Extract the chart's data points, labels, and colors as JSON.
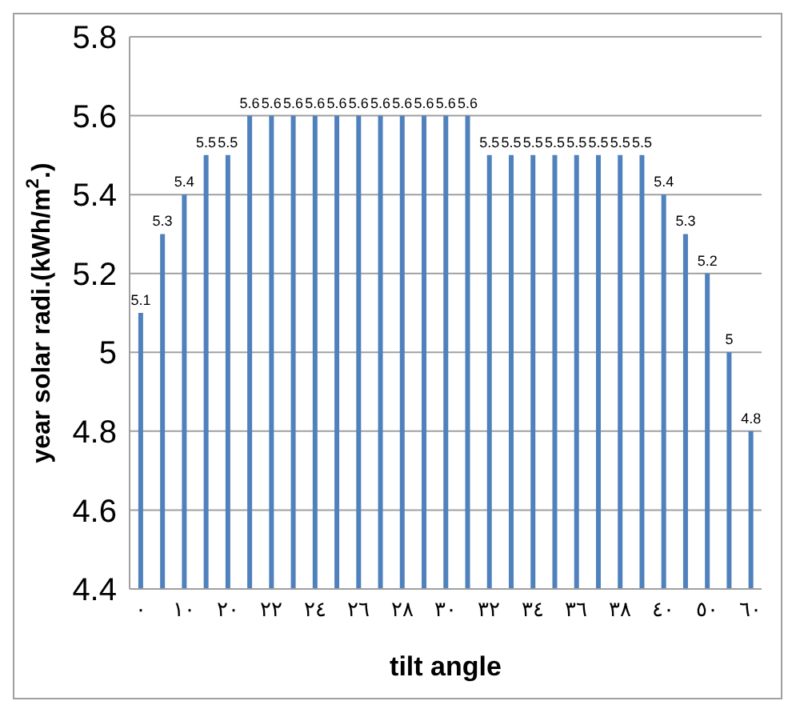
{
  "chart_data": {
    "type": "bar",
    "categories": [
      "٠",
      null,
      "١٠",
      null,
      "٢٠",
      null,
      "٢٢",
      null,
      "٢٤",
      null,
      "٢٦",
      null,
      "٢٨",
      null,
      "٣٠",
      null,
      "٣٢",
      null,
      "٣٤",
      null,
      "٣٦",
      null,
      "٣٨",
      null,
      "٤٠",
      null,
      "٥٠",
      null,
      "٦٠"
    ],
    "values": [
      5.1,
      5.3,
      5.4,
      5.5,
      5.5,
      5.6,
      5.6,
      5.6,
      5.6,
      5.6,
      5.6,
      5.6,
      5.6,
      5.6,
      5.6,
      5.6,
      5.5,
      5.5,
      5.5,
      5.5,
      5.5,
      5.5,
      5.5,
      5.5,
      5.4,
      5.3,
      5.2,
      5,
      4.8
    ],
    "color": "#4f81bd",
    "xlabel": "tilt angle",
    "ylabel": "year solar radi.(kWh/m$^{2}$.)",
    "ylim": [
      4.4,
      5.8
    ],
    "yticks": [
      4.4,
      4.6,
      4.8,
      5,
      5.2,
      5.4,
      5.6,
      5.8
    ],
    "grid": "y",
    "data_labels": true
  }
}
